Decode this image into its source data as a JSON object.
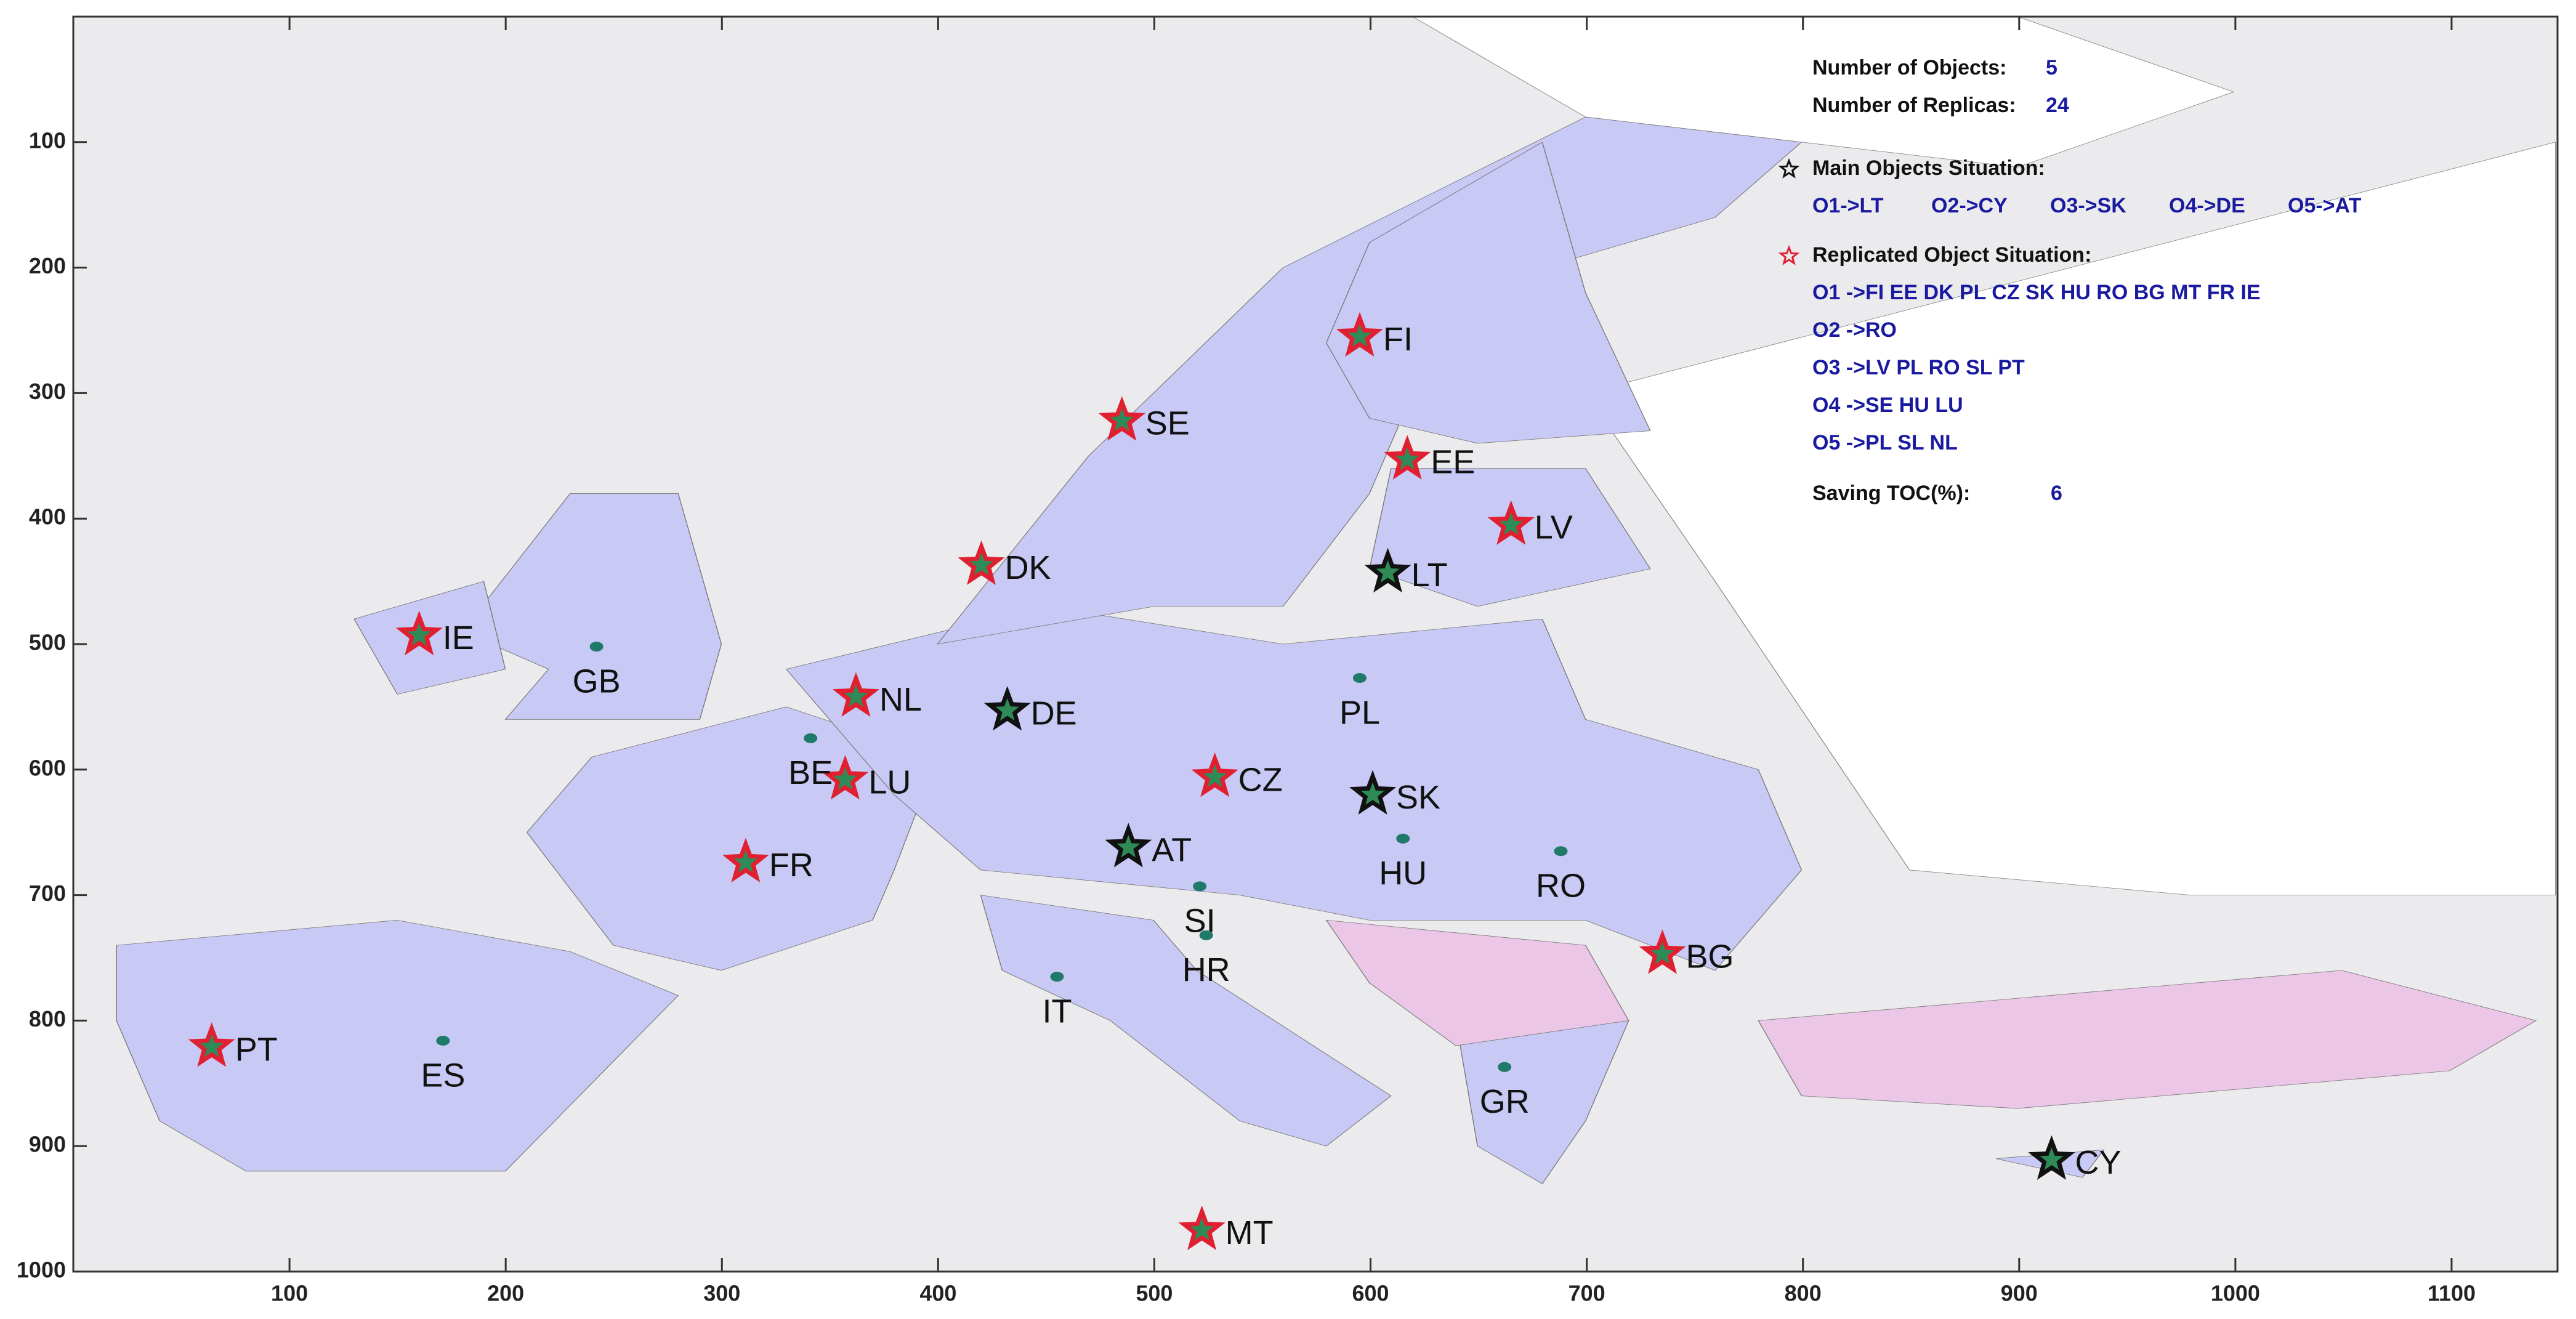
{
  "chart_data": {
    "type": "scatter",
    "xlim": [
      0,
      1149
    ],
    "ylim": [
      0,
      1000
    ],
    "xticks": [
      100,
      200,
      300,
      400,
      500,
      600,
      700,
      800,
      900,
      1000,
      1100
    ],
    "yticks": [
      100,
      200,
      300,
      400,
      500,
      600,
      700,
      800,
      900,
      1000
    ],
    "series": [
      {
        "name": "Main Objects Situation:",
        "color": "#111111",
        "labels": [
          "LT",
          "DE",
          "SK",
          "AT",
          "CY"
        ],
        "x": [
          608,
          432,
          601,
          488,
          915
        ],
        "y": [
          443,
          553,
          620,
          662,
          911
        ]
      },
      {
        "name": "Replicated Object Situation:",
        "color": "#e02030",
        "labels": [
          "FI",
          "SE",
          "EE",
          "LV",
          "DK",
          "IE",
          "NL",
          "LU",
          "CZ",
          "FR",
          "BG",
          "PT",
          "MT"
        ],
        "x": [
          595,
          485,
          617,
          665,
          420,
          160,
          362,
          357,
          528,
          311,
          735,
          64,
          522
        ],
        "y": [
          255,
          322,
          353,
          405,
          437,
          493,
          542,
          608,
          606,
          674,
          747,
          821,
          967
        ]
      },
      {
        "color": "#1f7a6a",
        "labels": [
          "GB",
          "BE",
          "PL",
          "HU",
          "RO",
          "SI",
          "HR",
          "IT",
          "ES",
          "GR"
        ],
        "x": [
          242,
          341,
          595,
          615,
          688,
          521,
          524,
          455,
          171,
          662
        ],
        "y": [
          502,
          575,
          527,
          655,
          665,
          693,
          732,
          765,
          816,
          837
        ]
      }
    ],
    "info": {
      "objects_label": "Number of Objects:",
      "objects": 5,
      "replicas_label": "Number of Replicas:",
      "replicas": 24,
      "main": [
        "O1->LT",
        "O2->CY",
        "O3->SK",
        "O4->DE",
        "O5->AT"
      ],
      "replicated": [
        "O1 ->FI EE DK PL CZ SK HU RO BG MT FR IE",
        "O2 ->RO",
        "O3 ->LV PL RO SL PT",
        "O4 ->SE HU LU",
        "O5 ->PL SL NL"
      ],
      "saving_label": "Saving TOC(%):",
      "saving": 6
    }
  }
}
